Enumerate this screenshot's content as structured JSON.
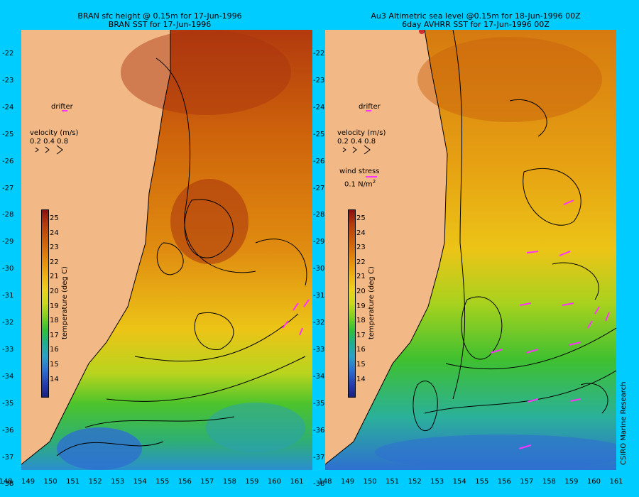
{
  "left_panel": {
    "title_line1": "BRAN sfc height @ 0.15m for 17-Jun-1996",
    "title_line2": "BRAN SST for 17-Jun-1996",
    "drifter_label": "drifter",
    "velocity_label": "velocity (m/s)",
    "velocity_scale": "0.2 0.4 0.8",
    "colorbar_label": "temperature (deg C)"
  },
  "right_panel": {
    "title_line1": "Au3 Altimetric sea level  @0.15m  for 18-Jun-1996 00Z",
    "title_line2": "6day AVHRR SST for 17-Jun-1996 00Z",
    "drifter_label": "drifter",
    "velocity_label": "velocity (m/s)",
    "velocity_scale": "0.2 0.4 0.8",
    "wind_label": "wind stress",
    "wind_value": "0.1 N/m",
    "wind_value_sup": "2",
    "colorbar_label": "temperature (deg C)"
  },
  "credit": "CSIRO Marine Research",
  "latitudes": [
    "-22",
    "-23",
    "-24",
    "-25",
    "-26",
    "-27",
    "-28",
    "-29",
    "-30",
    "-31",
    "-32",
    "-33",
    "-34",
    "-35",
    "-36",
    "-37",
    "-38"
  ],
  "longitudes": [
    "148",
    "149",
    "150",
    "151",
    "152",
    "153",
    "154",
    "155",
    "156",
    "157",
    "158",
    "159",
    "160",
    "161"
  ],
  "colorbar": {
    "ticks": [
      "25",
      "24",
      "23",
      "22",
      "21",
      "20",
      "19",
      "18",
      "17",
      "16",
      "15",
      "14"
    ],
    "colors": [
      "#8a0f0f",
      "#b23a0e",
      "#c8560a",
      "#d9720c",
      "#e6930e",
      "#eeb414",
      "#ecd11c",
      "#c9d81e",
      "#7fd020",
      "#30c038",
      "#1fae8e",
      "#2aa0c8",
      "#2e6fd0",
      "#2540b0",
      "#1a1f80"
    ]
  },
  "colors": {
    "background": "#00ccff",
    "land": "#f2b885",
    "vector": "#ff33ff"
  }
}
